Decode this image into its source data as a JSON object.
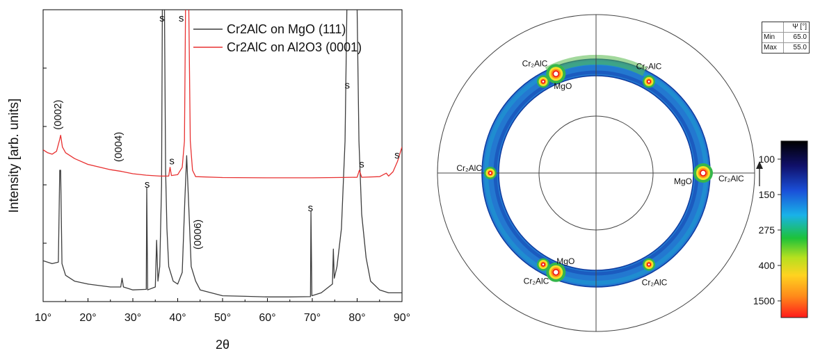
{
  "chart_data": [
    {
      "type": "line",
      "xlabel": "2θ",
      "ylabel": "Intensity [arb. units]",
      "xlim": [
        10,
        90
      ],
      "ylim": [
        0,
        100
      ],
      "x_ticks": [
        10,
        20,
        30,
        40,
        50,
        60,
        70,
        80,
        90
      ],
      "x_tick_labels": [
        "10°",
        "20°",
        "30°",
        "40°",
        "50°",
        "60°",
        "70°",
        "80°",
        "90°"
      ],
      "legend_position": "top-right",
      "series": [
        {
          "name": "Cr2AlC on MgO (111)",
          "color": "#3c3c3c",
          "points": [
            [
              10,
              14
            ],
            [
              12,
              13
            ],
            [
              13.4,
              13.5
            ],
            [
              13.7,
              45
            ],
            [
              13.9,
              45
            ],
            [
              14.2,
              13
            ],
            [
              15,
              9
            ],
            [
              17,
              7
            ],
            [
              20,
              6
            ],
            [
              25,
              5
            ],
            [
              27.3,
              5
            ],
            [
              27.6,
              8
            ],
            [
              27.9,
              5
            ],
            [
              30,
              4
            ],
            [
              33,
              4.2
            ],
            [
              33.1,
              39
            ],
            [
              33.3,
              4
            ],
            [
              35,
              5
            ],
            [
              35.3,
              21
            ],
            [
              35.6,
              7
            ],
            [
              36,
              12
            ],
            [
              36.4,
              40
            ],
            [
              36.6,
              110
            ],
            [
              37.0,
              110
            ],
            [
              37.3,
              45
            ],
            [
              37.6,
              25
            ],
            [
              38,
              12
            ],
            [
              39,
              7
            ],
            [
              40,
              6
            ],
            [
              41,
              10
            ],
            [
              41.6,
              35
            ],
            [
              42,
              50
            ],
            [
              42.4,
              35
            ],
            [
              43,
              12
            ],
            [
              44,
              7
            ],
            [
              45,
              4
            ],
            [
              50,
              2
            ],
            [
              55,
              1.8
            ],
            [
              60,
              1.6
            ],
            [
              65,
              1.6
            ],
            [
              69.6,
              1.7
            ],
            [
              69.7,
              31
            ],
            [
              69.9,
              2
            ],
            [
              72,
              3
            ],
            [
              74.5,
              6
            ],
            [
              74.7,
              18
            ],
            [
              74.9,
              8
            ],
            [
              75.5,
              12
            ],
            [
              76.5,
              25
            ],
            [
              77.3,
              55
            ],
            [
              77.8,
              110
            ],
            [
              79.9,
              110
            ],
            [
              80.4,
              55
            ],
            [
              81,
              30
            ],
            [
              82,
              15
            ],
            [
              83,
              7
            ],
            [
              85,
              4
            ],
            [
              87,
              3
            ],
            [
              89,
              3
            ],
            [
              90,
              3
            ]
          ]
        },
        {
          "name": "Cr2AlC on Al2O3 (0001)",
          "color": "#e83030",
          "points": [
            [
              10,
              52
            ],
            [
              11,
              51
            ],
            [
              12,
              50.5
            ],
            [
              13,
              51.5
            ],
            [
              13.6,
              55
            ],
            [
              13.9,
              57
            ],
            [
              14.3,
              53
            ],
            [
              15,
              51
            ],
            [
              17,
              49
            ],
            [
              20,
              47
            ],
            [
              25,
              45.2
            ],
            [
              27.5,
              44.6
            ],
            [
              30,
              43.8
            ],
            [
              33,
              43.3
            ],
            [
              36,
              43
            ],
            [
              38,
              43
            ],
            [
              38.3,
              46
            ],
            [
              38.6,
              43.2
            ],
            [
              40,
              43.5
            ],
            [
              41,
              46
            ],
            [
              41.5,
              55
            ],
            [
              41.8,
              110
            ],
            [
              42.4,
              110
            ],
            [
              42.8,
              55
            ],
            [
              43.3,
              45
            ],
            [
              44,
              42.8
            ],
            [
              50,
              42.5
            ],
            [
              60,
              42.4
            ],
            [
              70,
              42.4
            ],
            [
              75,
              42.5
            ],
            [
              80,
              42.6
            ],
            [
              80.5,
              45
            ],
            [
              81,
              42.6
            ],
            [
              85,
              42.8
            ],
            [
              86.5,
              44
            ],
            [
              87,
              43
            ],
            [
              88,
              44.5
            ],
            [
              89,
              48
            ],
            [
              90,
              53
            ]
          ]
        }
      ],
      "annotations": [
        {
          "text": "(0002)",
          "x": 14,
          "y": 64,
          "rotate": true
        },
        {
          "text": "(0004)",
          "x": 27.5,
          "y": 53,
          "rotate": true
        },
        {
          "text": "(0006)",
          "x": 45.2,
          "y": 23,
          "rotate": true
        },
        {
          "text": "s",
          "x": 36.5,
          "y": 96,
          "rotate": false
        },
        {
          "text": "s",
          "x": 40.8,
          "y": 96,
          "rotate": false
        },
        {
          "text": "s",
          "x": 38.7,
          "y": 47,
          "rotate": false
        },
        {
          "text": "s",
          "x": 33.2,
          "y": 39,
          "rotate": false
        },
        {
          "text": "s",
          "x": 69.6,
          "y": 31,
          "rotate": false
        },
        {
          "text": "s",
          "x": 77.8,
          "y": 73,
          "rotate": false
        },
        {
          "text": "s",
          "x": 81.0,
          "y": 46,
          "rotate": false
        },
        {
          "text": "s",
          "x": 88.9,
          "y": 49,
          "rotate": false
        }
      ]
    },
    {
      "type": "heatmap",
      "subtype": "pole_figure",
      "psi_table": {
        "header": "Ψ [°]",
        "rows": [
          {
            "label": "Min",
            "value": "65.0"
          },
          {
            "label": "Max",
            "value": "55.0"
          }
        ]
      },
      "colorbar": {
        "labels": [
          "100",
          "150",
          "275",
          "400",
          "1500"
        ],
        "colors": [
          "#000000",
          "#10106a",
          "#1a4fd8",
          "#19b2e8",
          "#1dc23a",
          "#b6e01f",
          "#ffd320",
          "#ff8a1a",
          "#ff1a1a"
        ]
      },
      "reflections": [
        {
          "label": "Cr₂AlC",
          "azimuth_deg": 0
        },
        {
          "label": "Cr₂AlC",
          "azimuth_deg": 60
        },
        {
          "label": "Cr₂AlC",
          "azimuth_deg": 120
        },
        {
          "label": "Cr₂AlC",
          "azimuth_deg": 180
        },
        {
          "label": "Cr₂AlC",
          "azimuth_deg": 240
        },
        {
          "label": "Cr₂AlC",
          "azimuth_deg": 300
        },
        {
          "label": "MgO",
          "azimuth_deg": 0
        },
        {
          "label": "MgO",
          "azimuth_deg": 120
        },
        {
          "label": "MgO",
          "azimuth_deg": 240
        }
      ]
    }
  ]
}
